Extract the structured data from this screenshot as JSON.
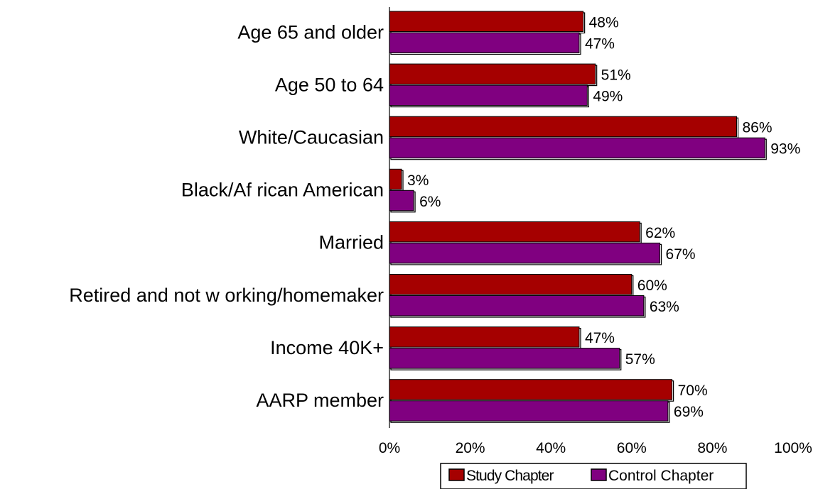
{
  "chart_data": {
    "type": "bar",
    "orientation": "horizontal",
    "title": "",
    "xlabel": "",
    "ylabel": "",
    "xlim": [
      0,
      100
    ],
    "value_format": "percent",
    "grid": false,
    "legend_position": "bottom",
    "categories": [
      "Age 65 and older",
      "Age 50 to 64",
      "White/Caucasian",
      "Black/Af rican American",
      "Married",
      "Retired and not w orking/homemaker",
      "Income 40K+",
      "AARP member"
    ],
    "x_ticks": [
      "0%",
      "20%",
      "40%",
      "60%",
      "80%",
      "100%"
    ],
    "series": [
      {
        "name": "Study Chapter",
        "color": "#a50000",
        "values": [
          48,
          51,
          86,
          3,
          62,
          60,
          47,
          70
        ],
        "labels": [
          "48%",
          "51%",
          "86%",
          "3%",
          "62%",
          "60%",
          "47%",
          "70%"
        ]
      },
      {
        "name": "Control Chapter",
        "color": "#800080",
        "values": [
          47,
          49,
          93,
          6,
          67,
          63,
          57,
          69
        ],
        "labels": [
          "47%",
          "49%",
          "93%",
          "6%",
          "67%",
          "63%",
          "57%",
          "69%"
        ]
      }
    ]
  }
}
